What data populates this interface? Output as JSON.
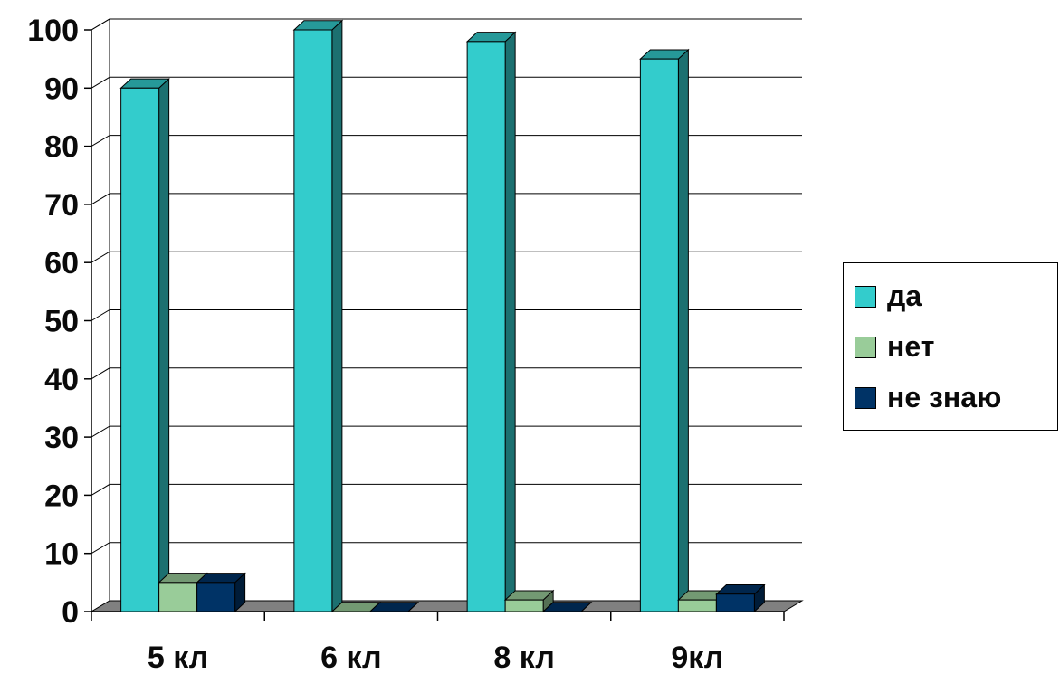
{
  "chart_data": {
    "type": "bar",
    "categories": [
      "5 кл",
      "6 кл",
      "8 кл",
      "9кл"
    ],
    "series": [
      {
        "name": "да",
        "values": [
          90,
          100,
          98,
          95
        ],
        "color": "#33CCCC"
      },
      {
        "name": "нет",
        "values": [
          5,
          0,
          2,
          2
        ],
        "color": "#99CC99"
      },
      {
        "name": "не знаю",
        "values": [
          5,
          0,
          0,
          3
        ],
        "color": "#003366"
      }
    ],
    "ylim": [
      0,
      100
    ],
    "yticks": [
      0,
      10,
      20,
      30,
      40,
      50,
      60,
      70,
      80,
      90,
      100
    ],
    "grid": true,
    "legend_position": "right",
    "style": "3d-column"
  }
}
